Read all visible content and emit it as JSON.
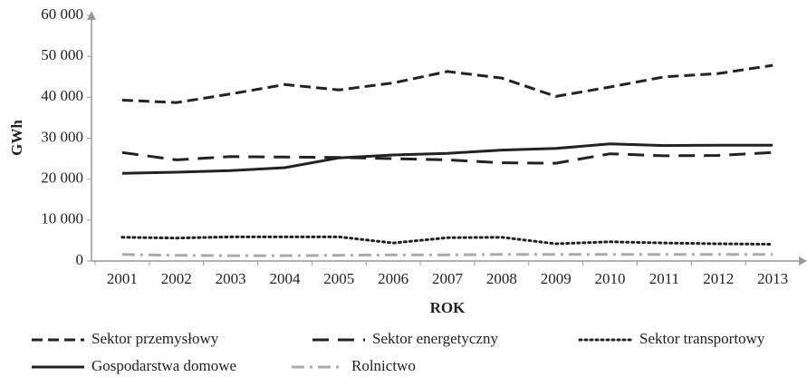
{
  "chart_data": {
    "type": "line",
    "x_label": "ROK",
    "y_label": "GWh",
    "categories": [
      "2001",
      "2002",
      "2003",
      "2004",
      "2005",
      "2006",
      "2007",
      "2008",
      "2009",
      "2010",
      "2011",
      "2012",
      "2013"
    ],
    "ylim": [
      0,
      60000
    ],
    "yticks": [
      0,
      {
        "value": 10000,
        "label": "10 000"
      },
      {
        "value": 20000,
        "label": "20 000"
      },
      {
        "value": 30000,
        "label": "30 000"
      },
      {
        "value": 40000,
        "label": "40 000"
      },
      {
        "value": 50000,
        "label": "50 000"
      },
      {
        "value": 60000,
        "label": "60 000"
      }
    ],
    "grid": false,
    "legend": "bottom",
    "series": [
      {
        "name": "Sektor przemysłowy",
        "color": "#222222",
        "dash": "12 6",
        "values": [
          39300,
          38700,
          40800,
          43100,
          41800,
          43500,
          46300,
          44700,
          40200,
          42500,
          45000,
          45800,
          47800
        ]
      },
      {
        "name": "Sektor energetyczny",
        "color": "#222222",
        "dash": "18 10",
        "values": [
          26500,
          24700,
          25500,
          25400,
          25300,
          25000,
          24700,
          24000,
          23900,
          26200,
          25700,
          25800,
          26500
        ]
      },
      {
        "name": "Sektor transportowy",
        "color": "#222222",
        "dash": "2 4",
        "values": [
          5800,
          5600,
          5900,
          5900,
          5900,
          4400,
          5700,
          5800,
          4200,
          4700,
          4400,
          4200,
          4100
        ]
      },
      {
        "name": "Gospodarstwa domowe",
        "color": "#222222",
        "dash": "none",
        "values": [
          21400,
          21700,
          22100,
          22800,
          25200,
          25900,
          26300,
          27100,
          27500,
          28600,
          28200,
          28300,
          28300
        ]
      },
      {
        "name": "Rolnictwo",
        "color": "#aaaaaa",
        "dash": "14 6 3 6",
        "values": [
          1600,
          1400,
          1300,
          1300,
          1400,
          1500,
          1500,
          1600,
          1600,
          1600,
          1600,
          1600,
          1600
        ]
      }
    ]
  }
}
